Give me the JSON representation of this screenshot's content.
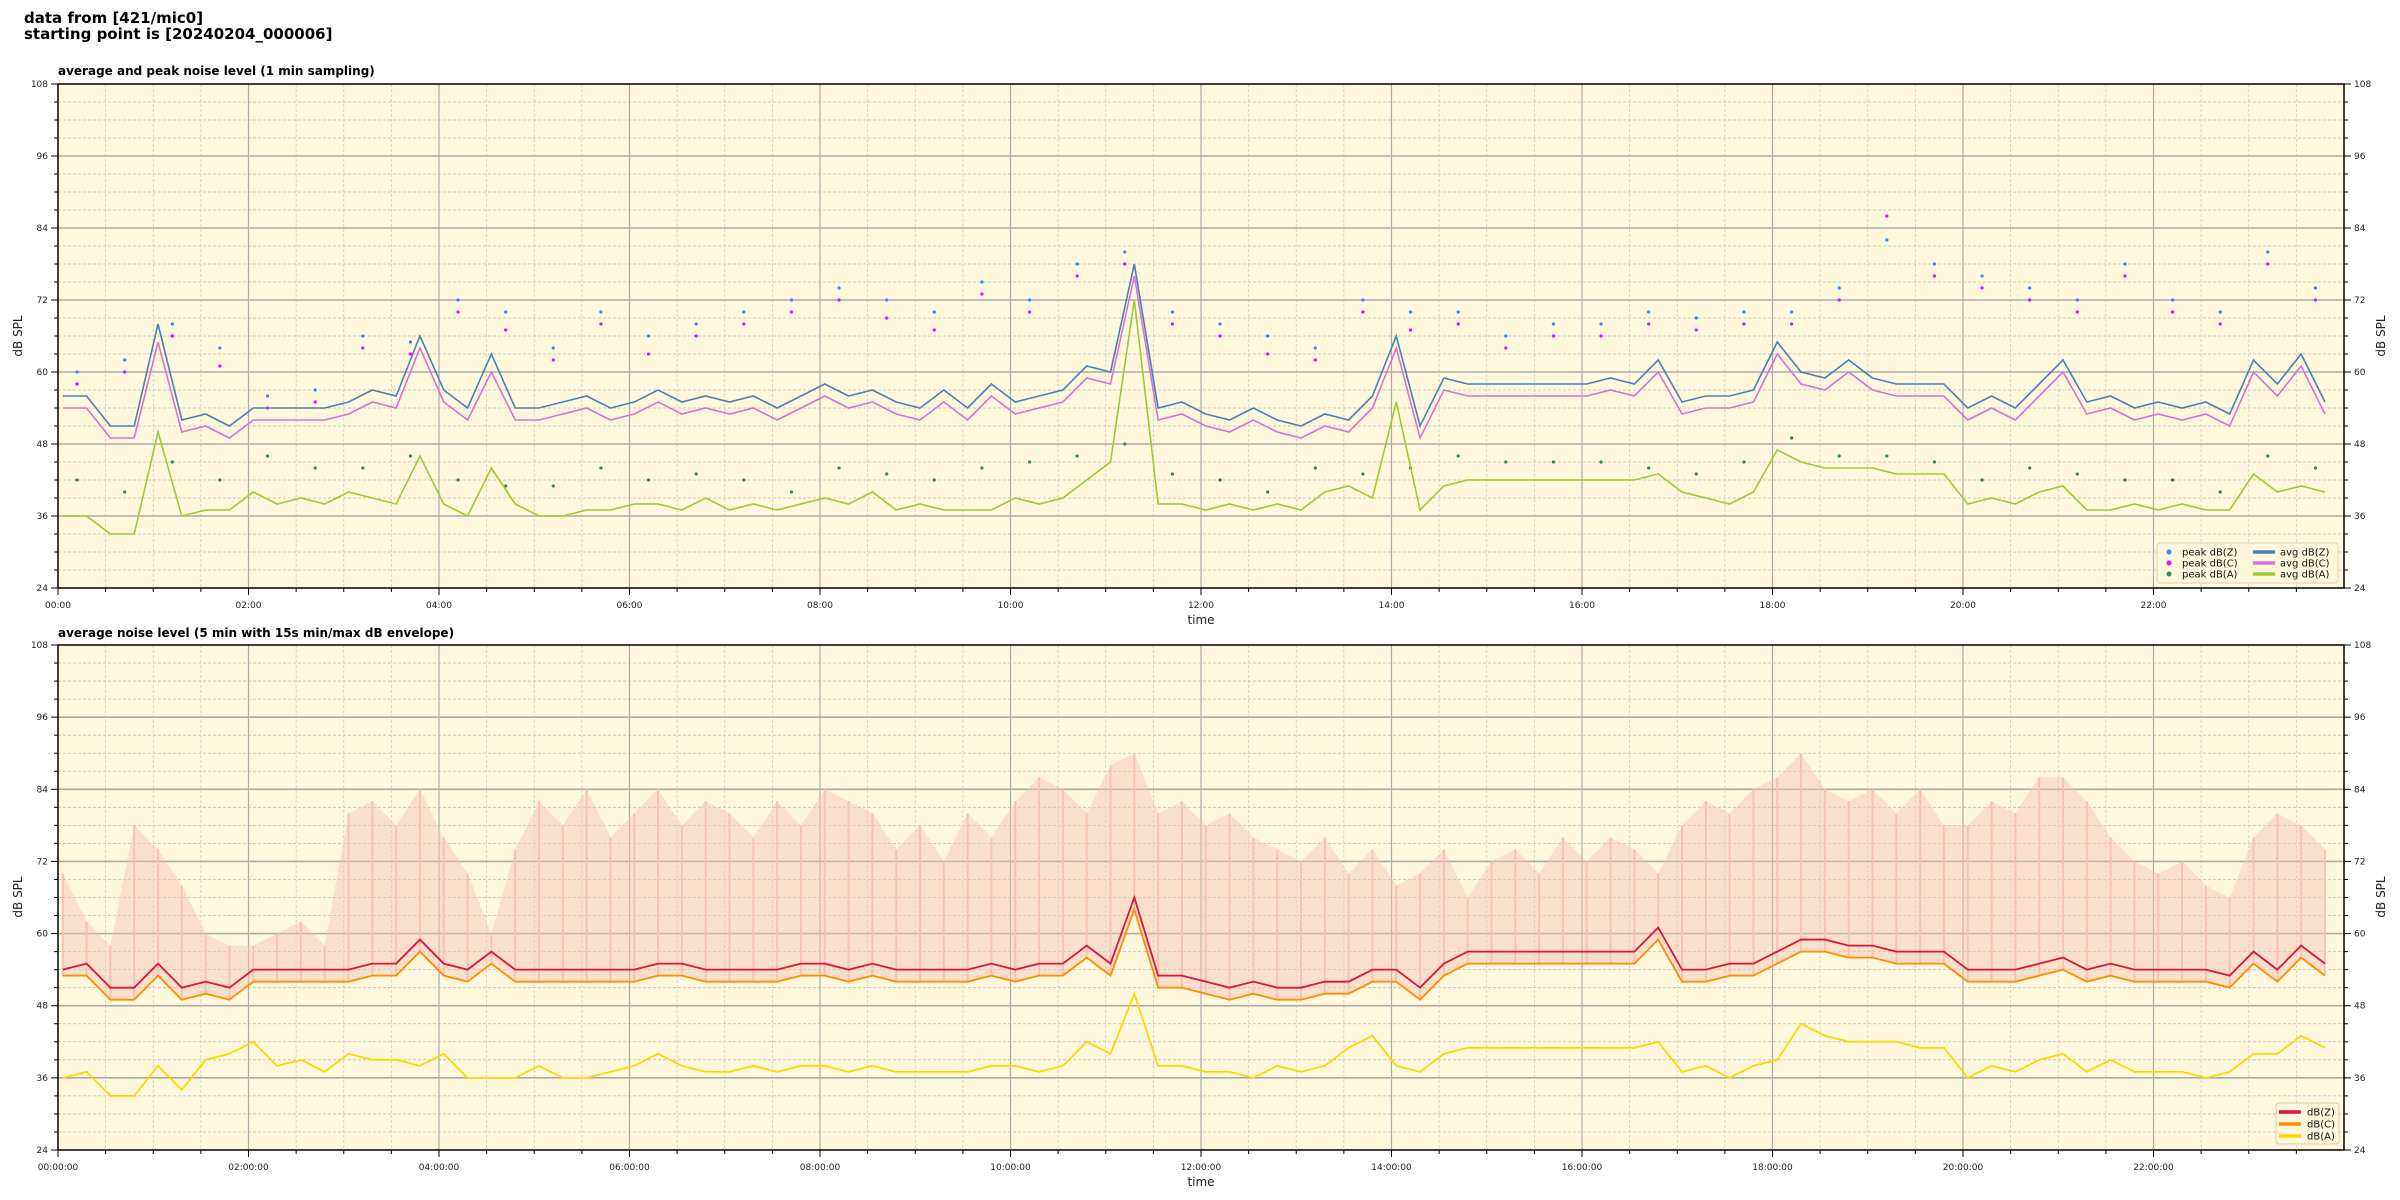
{
  "header": {
    "line1": "data from [421/mic0]",
    "line2": "starting point is [20240204_000006]"
  },
  "colors": {
    "background": "#fff8dc",
    "avg_z": "#4682b4",
    "avg_c": "#da70d6",
    "avg_a": "#9acd32",
    "peak_z": "#1e90ff",
    "peak_c": "#ff00ff",
    "peak_a": "#2e8b57",
    "db_z": "#dc143c",
    "db_c": "#ff8c00",
    "db_a": "#ffd700",
    "envelope": "#f5c3b4"
  },
  "chart_data": [
    {
      "type": "line",
      "title": "average and peak noise level (1 min sampling)",
      "xlabel": "time",
      "ylabel": "dB SPL",
      "xlim_hours": [
        0,
        24
      ],
      "ylim": [
        24,
        108
      ],
      "yticks": [
        24,
        36,
        48,
        60,
        72,
        84,
        96,
        108
      ],
      "xtick_labels": [
        "00:00",
        "02:00",
        "04:00",
        "06:00",
        "08:00",
        "10:00",
        "12:00",
        "14:00",
        "16:00",
        "18:00",
        "20:00",
        "22:00"
      ],
      "grid": true,
      "legend": "lower-right",
      "legend_entries": [
        "peak dB(Z)",
        "peak dB(C)",
        "peak dB(A)",
        "avg dB(Z)",
        "avg dB(C)",
        "avg dB(A)"
      ],
      "avg_step_minutes": 15,
      "peak_step_minutes": 30,
      "series": [
        {
          "name": "avg dB(Z)",
          "kind": "line",
          "values": [
            56,
            56,
            51,
            51,
            68,
            52,
            53,
            51,
            54,
            54,
            54,
            54,
            55,
            57,
            56,
            66,
            57,
            54,
            63,
            54,
            54,
            55,
            56,
            54,
            55,
            57,
            55,
            56,
            55,
            56,
            54,
            56,
            58,
            56,
            57,
            55,
            54,
            57,
            54,
            58,
            55,
            56,
            57,
            61,
            60,
            78,
            54,
            55,
            53,
            52,
            54,
            52,
            51,
            53,
            52,
            56,
            66,
            51,
            59,
            58,
            58,
            58,
            58,
            58,
            58,
            59,
            58,
            62,
            55,
            56,
            56,
            57,
            65,
            60,
            59,
            62,
            59,
            58,
            58,
            58,
            54,
            56,
            54,
            58,
            62,
            55,
            56,
            54,
            55,
            54,
            55,
            53,
            62,
            58,
            63,
            55
          ]
        },
        {
          "name": "avg dB(C)",
          "kind": "line",
          "values": [
            54,
            54,
            49,
            49,
            65,
            50,
            51,
            49,
            52,
            52,
            52,
            52,
            53,
            55,
            54,
            64,
            55,
            52,
            60,
            52,
            52,
            53,
            54,
            52,
            53,
            55,
            53,
            54,
            53,
            54,
            52,
            54,
            56,
            54,
            55,
            53,
            52,
            55,
            52,
            56,
            53,
            54,
            55,
            59,
            58,
            76,
            52,
            53,
            51,
            50,
            52,
            50,
            49,
            51,
            50,
            54,
            64,
            49,
            57,
            56,
            56,
            56,
            56,
            56,
            56,
            57,
            56,
            60,
            53,
            54,
            54,
            55,
            63,
            58,
            57,
            60,
            57,
            56,
            56,
            56,
            52,
            54,
            52,
            56,
            60,
            53,
            54,
            52,
            53,
            52,
            53,
            51,
            60,
            56,
            61,
            53
          ]
        },
        {
          "name": "avg dB(A)",
          "kind": "line",
          "values": [
            36,
            36,
            33,
            33,
            50,
            36,
            37,
            37,
            40,
            38,
            39,
            38,
            40,
            39,
            38,
            46,
            38,
            36,
            44,
            38,
            36,
            36,
            37,
            37,
            38,
            38,
            37,
            39,
            37,
            38,
            37,
            38,
            39,
            38,
            40,
            37,
            38,
            37,
            37,
            37,
            39,
            38,
            39,
            42,
            45,
            72,
            38,
            38,
            37,
            38,
            37,
            38,
            37,
            40,
            41,
            39,
            55,
            37,
            41,
            42,
            42,
            42,
            42,
            42,
            42,
            42,
            42,
            43,
            40,
            39,
            38,
            40,
            47,
            45,
            44,
            44,
            44,
            43,
            43,
            43,
            38,
            39,
            38,
            40,
            41,
            37,
            37,
            38,
            37,
            38,
            37,
            37,
            43,
            40,
            41,
            40
          ]
        },
        {
          "name": "peak dB(Z)",
          "kind": "scatter",
          "values": [
            60,
            62,
            68,
            64,
            56,
            57,
            66,
            65,
            72,
            70,
            64,
            70,
            66,
            68,
            70,
            72,
            74,
            72,
            70,
            75,
            72,
            78,
            80,
            70,
            68,
            66,
            64,
            72,
            70,
            70,
            66,
            68,
            68,
            70,
            69,
            70,
            70,
            74,
            82,
            78,
            76,
            74,
            72,
            78,
            72,
            70,
            80,
            74
          ]
        },
        {
          "name": "peak dB(C)",
          "kind": "scatter",
          "values": [
            58,
            60,
            66,
            61,
            54,
            55,
            64,
            63,
            70,
            67,
            62,
            68,
            63,
            66,
            68,
            70,
            72,
            69,
            67,
            73,
            70,
            76,
            78,
            68,
            66,
            63,
            62,
            70,
            67,
            68,
            64,
            66,
            66,
            68,
            67,
            68,
            68,
            72,
            86,
            76,
            74,
            72,
            70,
            76,
            70,
            68,
            78,
            72
          ]
        },
        {
          "name": "peak dB(A)",
          "kind": "scatter",
          "values": [
            42,
            40,
            45,
            42,
            46,
            44,
            44,
            46,
            42,
            41,
            41,
            44,
            42,
            43,
            42,
            40,
            44,
            43,
            42,
            44,
            45,
            46,
            48,
            43,
            42,
            40,
            44,
            43,
            44,
            46,
            45,
            45,
            45,
            44,
            43,
            45,
            49,
            46,
            46,
            45,
            42,
            44,
            43,
            42,
            42,
            40,
            46,
            44
          ]
        }
      ]
    },
    {
      "type": "line",
      "title": "average noise level (5 min with 15s min/max dB envelope)",
      "xlabel": "time",
      "ylabel": "dB SPL",
      "xlim_hours": [
        0,
        24
      ],
      "ylim": [
        24,
        108
      ],
      "yticks": [
        24,
        36,
        48,
        60,
        72,
        84,
        96,
        108
      ],
      "xtick_labels": [
        "00:00:00",
        "02:00:00",
        "04:00:00",
        "06:00:00",
        "08:00:00",
        "10:00:00",
        "12:00:00",
        "14:00:00",
        "16:00:00",
        "18:00:00",
        "20:00:00",
        "22:00:00"
      ],
      "grid": true,
      "legend": "lower-right",
      "legend_entries": [
        "dB(Z)",
        "dB(C)",
        "dB(A)"
      ],
      "step_minutes": 15,
      "series": [
        {
          "name": "dB(Z)",
          "values": [
            54,
            55,
            51,
            51,
            55,
            51,
            52,
            51,
            54,
            54,
            54,
            54,
            54,
            55,
            55,
            59,
            55,
            54,
            57,
            54,
            54,
            54,
            54,
            54,
            54,
            55,
            55,
            54,
            54,
            54,
            54,
            55,
            55,
            54,
            55,
            54,
            54,
            54,
            54,
            55,
            54,
            55,
            55,
            58,
            55,
            66,
            53,
            53,
            52,
            51,
            52,
            51,
            51,
            52,
            52,
            54,
            54,
            51,
            55,
            57,
            57,
            57,
            57,
            57,
            57,
            57,
            57,
            61,
            54,
            54,
            55,
            55,
            57,
            59,
            59,
            58,
            58,
            57,
            57,
            57,
            54,
            54,
            54,
            55,
            56,
            54,
            55,
            54,
            54,
            54,
            54,
            53,
            57,
            54,
            58,
            55
          ]
        },
        {
          "name": "dB(C)",
          "values": [
            53,
            53,
            49,
            49,
            53,
            49,
            50,
            49,
            52,
            52,
            52,
            52,
            52,
            53,
            53,
            57,
            53,
            52,
            55,
            52,
            52,
            52,
            52,
            52,
            52,
            53,
            53,
            52,
            52,
            52,
            52,
            53,
            53,
            52,
            53,
            52,
            52,
            52,
            52,
            53,
            52,
            53,
            53,
            56,
            53,
            64,
            51,
            51,
            50,
            49,
            50,
            49,
            49,
            50,
            50,
            52,
            52,
            49,
            53,
            55,
            55,
            55,
            55,
            55,
            55,
            55,
            55,
            59,
            52,
            52,
            53,
            53,
            55,
            57,
            57,
            56,
            56,
            55,
            55,
            55,
            52,
            52,
            52,
            53,
            54,
            52,
            53,
            52,
            52,
            52,
            52,
            51,
            55,
            52,
            56,
            53
          ]
        },
        {
          "name": "dB(A)",
          "values": [
            36,
            37,
            33,
            33,
            38,
            34,
            39,
            40,
            42,
            38,
            39,
            37,
            40,
            39,
            39,
            38,
            40,
            36,
            36,
            36,
            38,
            36,
            36,
            37,
            38,
            40,
            38,
            37,
            37,
            38,
            37,
            38,
            38,
            37,
            38,
            37,
            37,
            37,
            37,
            38,
            38,
            37,
            38,
            42,
            40,
            50,
            38,
            38,
            37,
            37,
            36,
            38,
            37,
            38,
            41,
            43,
            38,
            37,
            40,
            41,
            41,
            41,
            41,
            41,
            41,
            41,
            41,
            42,
            37,
            38,
            36,
            38,
            39,
            45,
            43,
            42,
            42,
            42,
            41,
            41,
            36,
            38,
            37,
            39,
            40,
            37,
            39,
            37,
            37,
            37,
            36,
            37,
            40,
            40,
            43,
            41
          ]
        },
        {
          "name": "envelope max",
          "values": [
            70,
            62,
            58,
            78,
            74,
            68,
            60,
            58,
            58,
            60,
            62,
            58,
            80,
            82,
            78,
            84,
            76,
            70,
            60,
            74,
            82,
            78,
            84,
            76,
            80,
            84,
            78,
            82,
            80,
            76,
            82,
            78,
            84,
            82,
            80,
            74,
            78,
            72,
            80,
            76,
            82,
            86,
            84,
            80,
            88,
            90,
            80,
            82,
            78,
            80,
            76,
            74,
            72,
            76,
            70,
            74,
            68,
            70,
            74,
            66,
            72,
            74,
            70,
            76,
            72,
            76,
            74,
            70,
            78,
            82,
            80,
            84,
            86,
            90,
            84,
            82,
            84,
            80,
            84,
            78,
            78,
            82,
            80,
            86,
            86,
            82,
            76,
            72,
            70,
            72,
            68,
            66,
            76,
            80,
            78,
            74
          ]
        }
      ]
    }
  ]
}
